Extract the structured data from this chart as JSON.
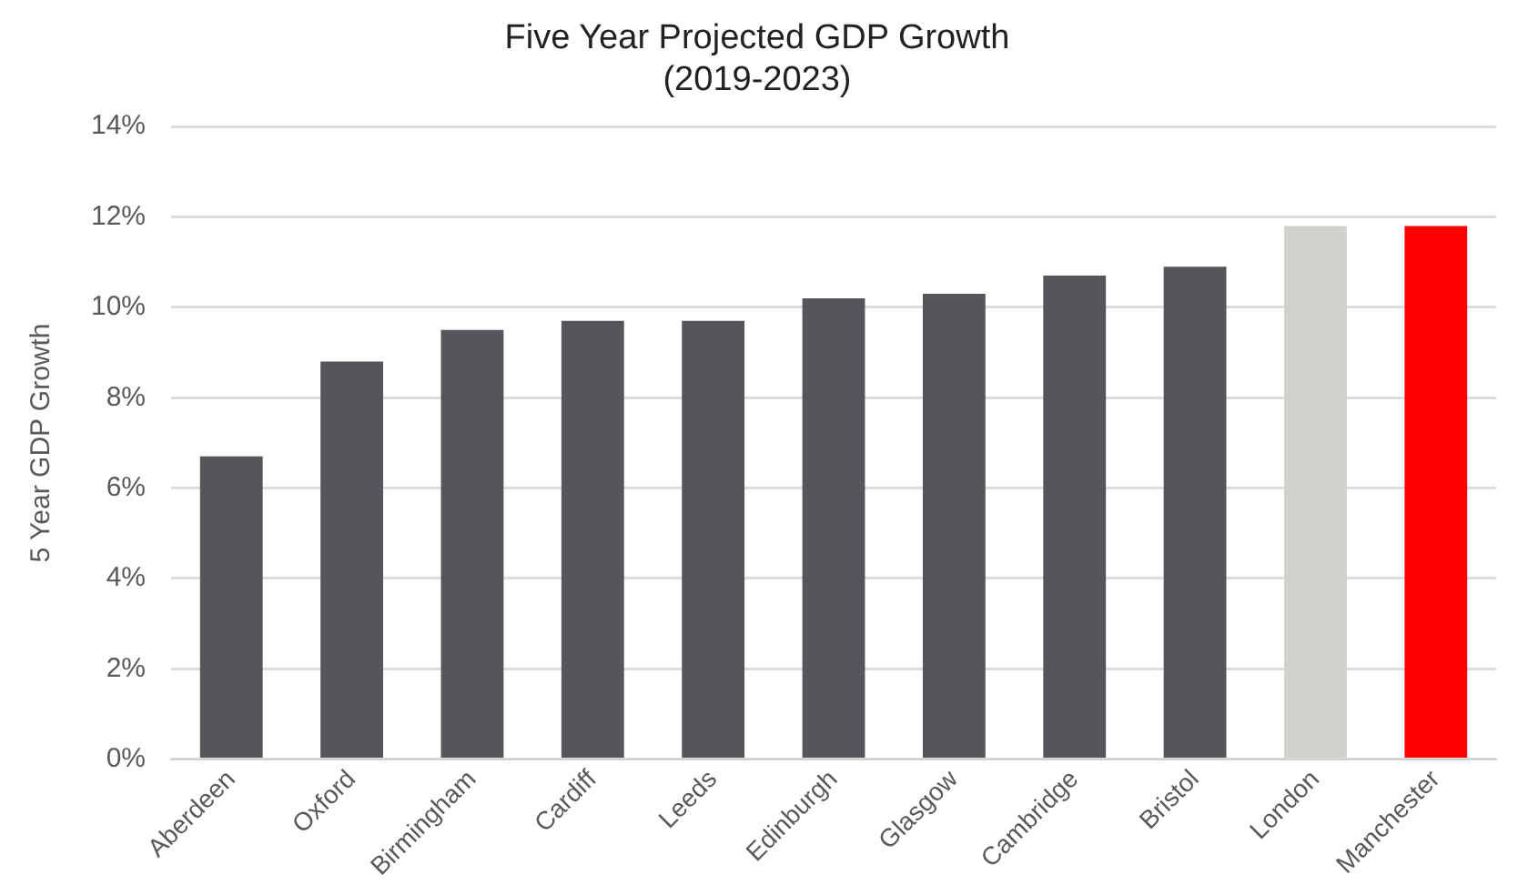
{
  "chart_data": {
    "type": "bar",
    "title": "Five Year Projected GDP Growth",
    "subtitle": "(2019-2023)",
    "ylabel": "5 Year GDP Growth",
    "categories": [
      "Aberdeen",
      "Oxford",
      "Birmingham",
      "Cardiff",
      "Leeds",
      "Edinburgh",
      "Glasgow",
      "Cambridge",
      "Bristol",
      "London",
      "Manchester"
    ],
    "values": [
      6.7,
      8.8,
      9.5,
      9.7,
      9.7,
      10.2,
      10.3,
      10.7,
      10.9,
      11.8,
      11.8
    ],
    "colors": [
      "#545659",
      "#545659",
      "#545659",
      "#545659",
      "#545659",
      "#545659",
      "#545659",
      "#545659",
      "#545659",
      "#d3d1cc",
      "#ff0000"
    ],
    "ylim": [
      0,
      14
    ],
    "yticks": [
      {
        "value": 0,
        "label": "0%"
      },
      {
        "value": 2,
        "label": "2%"
      },
      {
        "value": 4,
        "label": "4%"
      },
      {
        "value": 6,
        "label": "6%"
      },
      {
        "value": 8,
        "label": "8%"
      },
      {
        "value": 10,
        "label": "10%"
      },
      {
        "value": 12,
        "label": "12%"
      },
      {
        "value": 14,
        "label": "14%"
      }
    ],
    "grid": "y",
    "legend": false
  }
}
